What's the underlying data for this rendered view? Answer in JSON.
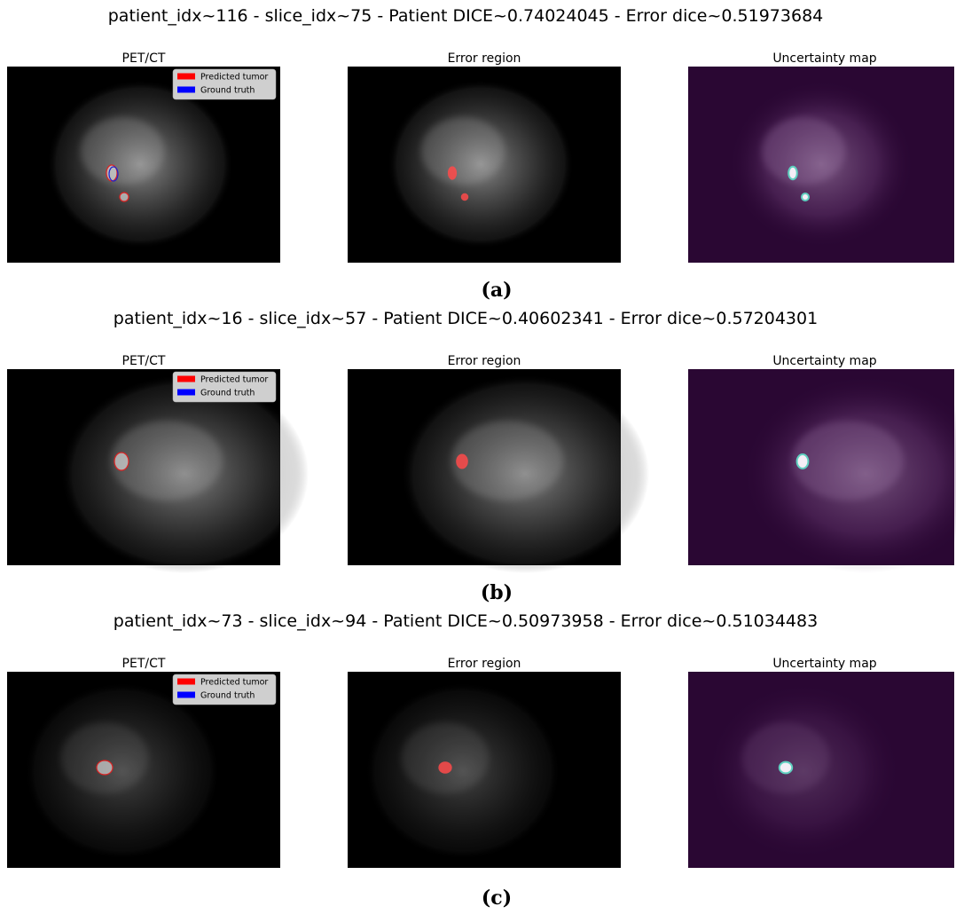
{
  "rows": [
    {
      "title": "patient_idx~116 - slice_idx~75 - Patient DICE~0.74024045 - Error dice~0.51973684",
      "panels": [
        "PET/CT",
        "Error region",
        "Uncertainty map"
      ],
      "legend": [
        "Predicted tumor",
        "Ground truth"
      ],
      "caption": "(a)"
    },
    {
      "title": "patient_idx~16 - slice_idx~57 - Patient DICE~0.40602341 - Error dice~0.57204301",
      "panels": [
        "PET/CT",
        "Error region",
        "Uncertainty map"
      ],
      "legend": [
        "Predicted tumor",
        "Ground truth"
      ],
      "caption": "(b)"
    },
    {
      "title": "patient_idx~73 - slice_idx~94 - Patient DICE~0.50973958 - Error dice~0.51034483",
      "panels": [
        "PET/CT",
        "Error region",
        "Uncertainty map"
      ],
      "legend": [
        "Predicted tumor",
        "Ground truth"
      ],
      "caption": "(c)"
    }
  ]
}
